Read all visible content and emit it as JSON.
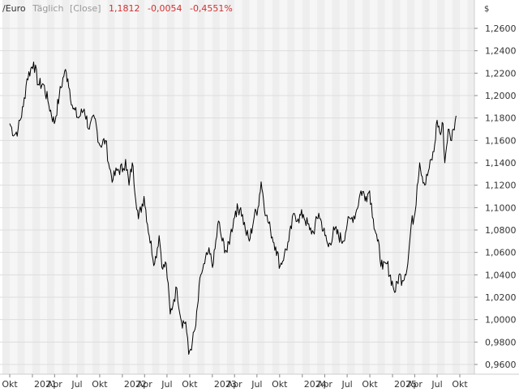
{
  "header": {
    "symbol": "/Euro",
    "period": "Täglich",
    "price_type": "[Close]",
    "last": "1,1812",
    "change": "-0,0054",
    "change_pct": "-0,4551%"
  },
  "colors": {
    "line": "#000000",
    "negative": "#d32f2f",
    "muted": "#999999",
    "band_a": "#eeeeee",
    "band_b": "#f6f6f6",
    "grid": "#dddddd",
    "text": "#333333"
  },
  "chart_data": {
    "type": "line",
    "currency_label": "$",
    "x_ticks": [
      "Okt",
      "2021",
      "Apr",
      "Jul",
      "Okt",
      "2022",
      "Apr",
      "Jul",
      "Okt",
      "2023",
      "Apr",
      "Jul",
      "Okt",
      "2024",
      "Apr",
      "Jul",
      "Okt",
      "2025",
      "Apr",
      "Jul",
      "Okt"
    ],
    "y_ticks": [
      "1,2600",
      "1,2400",
      "1,2200",
      "1,2000",
      "1,1800",
      "1,1600",
      "1,1400",
      "1,1200",
      "1,1000",
      "1,0800",
      "1,0600",
      "1,0400",
      "1,0200",
      "1,0000",
      "0,9800",
      "0,9600"
    ],
    "y_tick_values": [
      1.26,
      1.24,
      1.22,
      1.2,
      1.18,
      1.16,
      1.14,
      1.12,
      1.1,
      1.08,
      1.06,
      1.04,
      1.02,
      1.0,
      0.98,
      0.96
    ],
    "ylim": [
      0.955,
      1.275
    ],
    "grid": true,
    "series": [
      {
        "x": [
          "2020-10-01",
          "2020-10-20",
          "2020-11-04",
          "2020-11-25",
          "2020-12-10",
          "2021-01-06",
          "2021-01-25",
          "2021-02-15",
          "2021-03-05",
          "2021-03-31",
          "2021-04-20",
          "2021-05-12",
          "2021-05-25",
          "2021-06-15",
          "2021-07-07",
          "2021-07-30",
          "2021-08-20",
          "2021-09-10",
          "2021-10-01",
          "2021-10-25",
          "2021-11-10",
          "2021-11-24",
          "2021-12-10",
          "2022-01-05",
          "2022-01-14",
          "2022-01-28",
          "2022-02-10",
          "2022-03-07",
          "2022-03-30",
          "2022-04-20",
          "2022-05-12",
          "2022-05-30",
          "2022-06-14",
          "2022-06-28",
          "2022-07-14",
          "2022-07-29",
          "2022-08-10",
          "2022-08-29",
          "2022-09-15",
          "2022-09-27",
          "2022-10-12",
          "2022-10-26",
          "2022-11-15",
          "2022-12-01",
          "2022-12-15",
          "2023-01-05",
          "2023-01-26",
          "2023-02-10",
          "2023-03-02",
          "2023-03-15",
          "2023-04-05",
          "2023-04-26",
          "2023-05-15",
          "2023-05-31",
          "2023-06-20",
          "2023-07-05",
          "2023-07-18",
          "2023-08-07",
          "2023-08-25",
          "2023-09-15",
          "2023-10-03",
          "2023-10-20",
          "2023-11-07",
          "2023-11-29",
          "2023-12-15",
          "2024-01-05",
          "2024-01-31",
          "2024-02-15",
          "2024-03-08",
          "2024-04-02",
          "2024-04-16",
          "2024-05-10",
          "2024-06-14",
          "2024-07-01",
          "2024-07-17",
          "2024-08-05",
          "2024-08-26",
          "2024-09-15",
          "2024-09-30",
          "2024-10-15",
          "2024-11-01",
          "2024-11-22",
          "2024-12-10",
          "2025-01-03",
          "2025-01-13",
          "2025-01-27",
          "2025-02-10",
          "2025-03-04",
          "2025-03-18",
          "2025-04-02",
          "2025-04-11",
          "2025-04-21",
          "2025-05-12",
          "2025-05-30",
          "2025-06-18",
          "2025-07-01",
          "2025-07-15",
          "2025-07-25",
          "2025-08-01",
          "2025-08-15",
          "2025-08-25",
          "2025-09-05",
          "2025-09-16"
        ],
        "y": [
          1.175,
          1.165,
          1.17,
          1.19,
          1.215,
          1.23,
          1.21,
          1.21,
          1.195,
          1.175,
          1.2,
          1.222,
          1.215,
          1.188,
          1.18,
          1.188,
          1.17,
          1.18,
          1.156,
          1.16,
          1.135,
          1.125,
          1.133,
          1.135,
          1.143,
          1.12,
          1.14,
          1.09,
          1.11,
          1.075,
          1.05,
          1.075,
          1.045,
          1.05,
          1.005,
          1.018,
          1.028,
          0.998,
          0.998,
          0.969,
          0.98,
          0.995,
          1.04,
          1.05,
          1.06,
          1.05,
          1.088,
          1.07,
          1.06,
          1.075,
          1.097,
          1.1,
          1.08,
          1.07,
          1.092,
          1.1,
          1.123,
          1.093,
          1.08,
          1.065,
          1.048,
          1.058,
          1.07,
          1.095,
          1.09,
          1.094,
          1.08,
          1.078,
          1.095,
          1.075,
          1.065,
          1.08,
          1.07,
          1.085,
          1.09,
          1.095,
          1.115,
          1.11,
          1.115,
          1.09,
          1.07,
          1.045,
          1.05,
          1.03,
          1.025,
          1.04,
          1.035,
          1.05,
          1.085,
          1.095,
          1.12,
          1.14,
          1.12,
          1.135,
          1.15,
          1.178,
          1.165,
          1.175,
          1.14,
          1.17,
          1.16,
          1.17,
          1.182
        ]
      }
    ]
  }
}
